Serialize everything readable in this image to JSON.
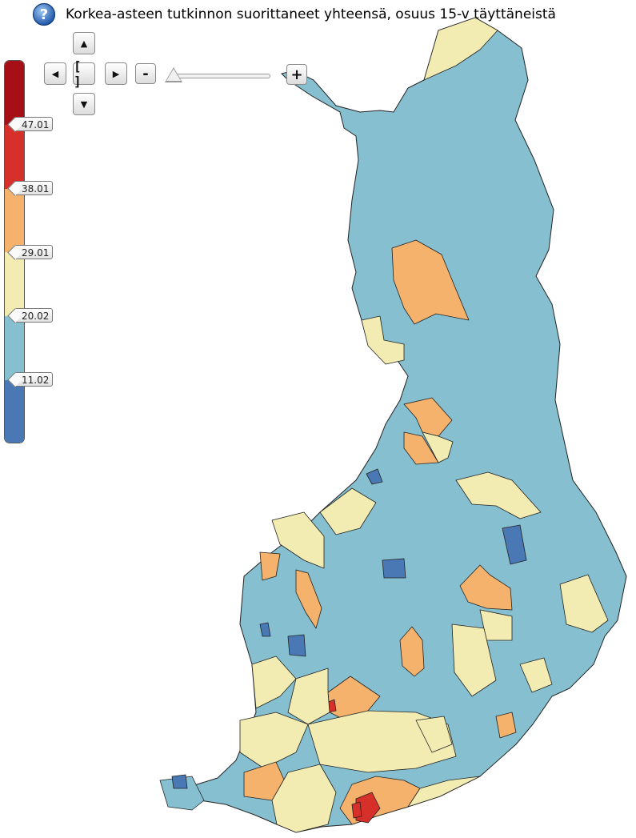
{
  "title": "Korkea-asteen tutkinnon suorittaneet yhteensä, osuus 15-v täyttäneistä",
  "icons": {
    "help": "help-question-icon",
    "pan_up": "arrow-up-icon",
    "pan_down": "arrow-down-icon",
    "pan_left": "arrow-left-icon",
    "pan_right": "arrow-right-icon",
    "reset": "fit-view-icon"
  },
  "controls": {
    "pan_up": "▲",
    "pan_down": "▼",
    "pan_left": "◀",
    "pan_right": "▶",
    "reset": "[ ]",
    "zoom_out": "-",
    "zoom_in": "+",
    "zoom_level": 0
  },
  "legend": {
    "classes": [
      {
        "label": "",
        "color": "#a50f15"
      },
      {
        "label": "47.01",
        "color": "#d7302b"
      },
      {
        "label": "38.01",
        "color": "#f4b26c"
      },
      {
        "label": "29.01",
        "color": "#f2ecb2"
      },
      {
        "label": "20.02",
        "color": "#86bfcf"
      },
      {
        "label": "11.02",
        "color": "#4a78b4"
      }
    ]
  },
  "map": {
    "background_color": "#86bfcf",
    "border_color": "#222222"
  }
}
